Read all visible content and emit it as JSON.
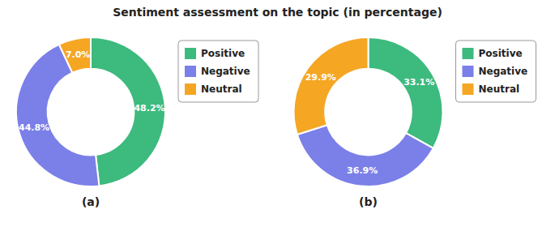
{
  "title": "Sentiment assessment on the topic (in percentage)",
  "chart_data": [
    {
      "type": "pie",
      "xlabel": "(a)",
      "categories": [
        "Positive",
        "Negative",
        "Neutral"
      ],
      "values": [
        48.2,
        44.8,
        7.0
      ],
      "value_labels": [
        "48.2%",
        "44.8%",
        "7.0%"
      ],
      "colors": [
        "#3dba7e",
        "#7b7fe8",
        "#f5a623"
      ],
      "data_labels": true,
      "legend": "right"
    },
    {
      "type": "pie",
      "xlabel": "(b)",
      "categories": [
        "Positive",
        "Negative",
        "Neutral"
      ],
      "values": [
        33.1,
        36.9,
        29.9
      ],
      "value_labels": [
        "33.1%",
        "36.9%",
        "29.9%"
      ],
      "colors": [
        "#3dba7e",
        "#7b7fe8",
        "#f5a623"
      ],
      "data_labels": true,
      "legend": "right"
    }
  ]
}
